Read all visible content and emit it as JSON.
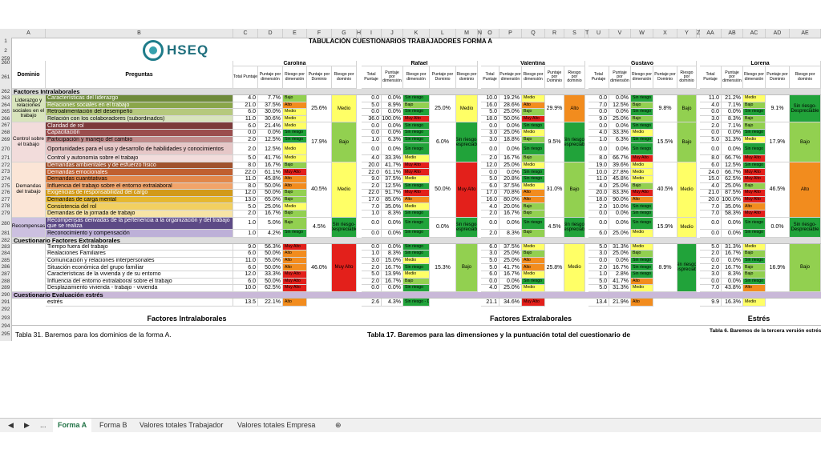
{
  "columns": [
    "A",
    "B",
    "C",
    "D",
    "E",
    "F",
    "G",
    "H",
    "I",
    "J",
    "K",
    "L",
    "M",
    "N",
    "O",
    "P",
    "Q",
    "R",
    "S",
    "T",
    "U",
    "V",
    "W",
    "X",
    "Y",
    "Z",
    "AA",
    "AB",
    "AC",
    "AD",
    "AE"
  ],
  "logo": "HSEQ",
  "title": "TABULACIÓN CUESTIONARIOS TRABAJADORES FORMA A",
  "row_numbers": [
    "1",
    "2",
    "259",
    "260",
    "261",
    "262",
    "263",
    "264",
    "265",
    "266",
    "267",
    "268",
    "269",
    "270",
    "271",
    "272",
    "273",
    "274",
    "275",
    "276",
    "277",
    "278",
    "279",
    "280",
    "281",
    "282",
    "283",
    "284",
    "285",
    "286",
    "287",
    "288",
    "289",
    "290",
    "291",
    "292",
    "293",
    "294",
    "295"
  ],
  "headers": {
    "dominio": "Dominio",
    "preguntas": "Preguntas",
    "total": "Total Puntaje",
    "pct_dim": "Puntaje por dimensión",
    "riesgo_dim": "Riesgo por dimensión",
    "pct_dom": "Puntaje por Dominio",
    "riesgo_dom": "Riesgo por dominio"
  },
  "workers": [
    "Carolina",
    "Rafael",
    "Valentina",
    "Gustavo",
    "Lorena"
  ],
  "sections": {
    "intra": "Factores Intralaborales",
    "extra": "Cuestionario Factores Extralaborales",
    "estres": "Cuestionario Evaluación estrés"
  },
  "domains": {
    "liderazgo": "Liderazgo y relaciones sociales en el trabajo",
    "control": "Control sobre el trabajo",
    "demandas": "Demandas del trabajo",
    "recompensas": "Recompensas"
  },
  "rows": [
    {
      "q": "Características del liderazgo",
      "c": "4.0",
      "cp": "7.7%",
      "cr": "Bajo",
      "r": "0.0",
      "rp": "0.0%",
      "rr": "Sin riesgo",
      "v": "10.0",
      "vp": "19.2%",
      "vr": "Medio",
      "g": "0.0",
      "gp": "0.0%",
      "gr": "Sin riesgo",
      "l": "11.0",
      "lp": "21.2%",
      "lr": "Medio"
    },
    {
      "q": "Relaciones sociales en el trabajo",
      "c": "21.0",
      "cp": "37.5%",
      "cr": "Alto",
      "r": "5.0",
      "rp": "8.9%",
      "rr": "Bajo",
      "v": "16.0",
      "vp": "28.6%",
      "vr": "Alto",
      "g": "7.0",
      "gp": "12.5%",
      "gr": "Bajo",
      "l": "4.0",
      "lp": "7.1%",
      "lr": "Bajo"
    },
    {
      "q": "Retroalimentación del desempeño",
      "c": "6.0",
      "cp": "30.0%",
      "cr": "Medio",
      "r": "0.0",
      "rp": "0.0%",
      "rr": "Sin riesgo",
      "v": "5.0",
      "vp": "25.0%",
      "vr": "Bajo",
      "g": "0.0",
      "gp": "0.0%",
      "gr": "Sin riesgo",
      "l": "0.0",
      "lp": "0.0%",
      "lr": "Sin riesgo"
    },
    {
      "q": "Relación con los colaboradores (subordinados)",
      "c": "11.0",
      "cp": "30.6%",
      "cr": "Medio",
      "r": "36.0",
      "rp": "100.0%",
      "rr": "Muy Alto",
      "v": "18.0",
      "vp": "50.0%",
      "vr": "Muy Alto",
      "g": "9.0",
      "gp": "25.0%",
      "gr": "Bajo",
      "l": "3.0",
      "lp": "8.3%",
      "lr": "Bajo"
    },
    {
      "q": "Claridad de rol",
      "c": "6.0",
      "cp": "21.4%",
      "cr": "Medio",
      "r": "0.0",
      "rp": "0.0%",
      "rr": "Sin riesgo",
      "v": "0.0",
      "vp": "0.0%",
      "vr": "Sin riesgo",
      "g": "0.0",
      "gp": "0.0%",
      "gr": "Sin riesgo",
      "l": "2.0",
      "lp": "7.1%",
      "lr": "Bajo"
    },
    {
      "q": "Capacitación",
      "c": "0.0",
      "cp": "0.0%",
      "cr": "Sin riesgo",
      "r": "0.0",
      "rp": "0.0%",
      "rr": "Sin riesgo",
      "v": "3.0",
      "vp": "25.0%",
      "vr": "Medio",
      "g": "4.0",
      "gp": "33.3%",
      "gr": "Medio",
      "l": "0.0",
      "lp": "0.0%",
      "lr": "Sin riesgo"
    },
    {
      "q": "Participación y manejo del cambio",
      "c": "2.0",
      "cp": "12.5%",
      "cr": "Sin riesgo",
      "r": "1.0",
      "rp": "6.3%",
      "rr": "Sin riesgo",
      "v": "3.0",
      "vp": "18.8%",
      "vr": "Bajo",
      "g": "1.0",
      "gp": "6.3%",
      "gr": "Sin riesgo",
      "l": "5.0",
      "lp": "31.3%",
      "lr": "Medio"
    },
    {
      "q": "Oportunidades para el uso y desarrollo de habilidades y conocimientos",
      "c": "2.0",
      "cp": "12.5%",
      "cr": "Medio",
      "r": "0.0",
      "rp": "0.0%",
      "rr": "Sin riesgo",
      "v": "0.0",
      "vp": "0.0%",
      "vr": "Sin riesgo",
      "g": "0.0",
      "gp": "0.0%",
      "gr": "Sin riesgo",
      "l": "0.0",
      "lp": "0.0%",
      "lr": "Sin riesgo"
    },
    {
      "q": "Control y autonomía sobre el trabajo",
      "c": "5.0",
      "cp": "41.7%",
      "cr": "Medio",
      "r": "4.0",
      "rp": "33.3%",
      "rr": "Medio",
      "v": "2.0",
      "vp": "16.7%",
      "vr": "Bajo",
      "g": "8.0",
      "gp": "66.7%",
      "gr": "Muy Alto",
      "l": "8.0",
      "lp": "66.7%",
      "lr": "Muy Alto"
    },
    {
      "q": "Demandas ambientales y de esfuerzo físico",
      "c": "8.0",
      "cp": "16.7%",
      "cr": "Bajo",
      "r": "20.0",
      "rp": "41.7%",
      "rr": "Muy Alto",
      "v": "12.0",
      "vp": "25.0%",
      "vr": "Medio",
      "g": "19.0",
      "gp": "39.6%",
      "gr": "Medio",
      "l": "6.0",
      "lp": "12.5%",
      "lr": "Sin riesgo"
    },
    {
      "q": "Demandas emocionales",
      "c": "22.0",
      "cp": "61.1%",
      "cr": "Muy Alto",
      "r": "22.0",
      "rp": "61.1%",
      "rr": "Muy Alto",
      "v": "0.0",
      "vp": "0.0%",
      "vr": "Sin riesgo",
      "g": "10.0",
      "gp": "27.8%",
      "gr": "Medio",
      "l": "24.0",
      "lp": "66.7%",
      "lr": "Muy Alto"
    },
    {
      "q": "Demandas cuantitativas",
      "c": "11.0",
      "cp": "45.8%",
      "cr": "Alto",
      "r": "9.0",
      "rp": "37.5%",
      "rr": "Medio",
      "v": "5.0",
      "vp": "20.8%",
      "vr": "Sin riesgo",
      "g": "11.0",
      "gp": "45.8%",
      "gr": "Medio",
      "l": "15.0",
      "lp": "62.5%",
      "lr": "Muy Alto"
    },
    {
      "q": "Influencia del trabajo sobre el entorno extralaboral",
      "c": "8.0",
      "cp": "50.0%",
      "cr": "Alto",
      "r": "2.0",
      "rp": "12.5%",
      "rr": "Sin riesgo",
      "v": "6.0",
      "vp": "37.5%",
      "vr": "Medio",
      "g": "4.0",
      "gp": "25.0%",
      "gr": "Bajo",
      "l": "4.0",
      "lp": "25.0%",
      "lr": "Bajo"
    },
    {
      "q": "Exigencias de responsabilidad del cargo",
      "c": "12.0",
      "cp": "50.0%",
      "cr": "Bajo",
      "r": "22.0",
      "rp": "91.7%",
      "rr": "Muy Alto",
      "v": "17.0",
      "vp": "70.8%",
      "vr": "Alto",
      "g": "20.0",
      "gp": "83.3%",
      "gr": "Muy Alto",
      "l": "21.0",
      "lp": "87.5%",
      "lr": "Muy Alto"
    },
    {
      "q": "Demandas de carga mental",
      "c": "13.0",
      "cp": "65.0%",
      "cr": "Bajo",
      "r": "17.0",
      "rp": "85.0%",
      "rr": "Alto",
      "v": "16.0",
      "vp": "80.0%",
      "vr": "Alto",
      "g": "18.0",
      "gp": "90.0%",
      "gr": "Alto",
      "l": "20.0",
      "lp": "100.0%",
      "lr": "Muy Alto"
    },
    {
      "q": "Consistencia del rol",
      "c": "5.0",
      "cp": "25.0%",
      "cr": "Medio",
      "r": "7.0",
      "rp": "35.0%",
      "rr": "Medio",
      "v": "4.0",
      "vp": "20.0%",
      "vr": "Bajo",
      "g": "2.0",
      "gp": "10.0%",
      "gr": "Sin riesgo",
      "l": "7.0",
      "lp": "35.0%",
      "lr": "Alto"
    },
    {
      "q": "Demandas de la jornada de trabajo",
      "c": "2.0",
      "cp": "16.7%",
      "cr": "Bajo",
      "r": "1.0",
      "rp": "8.3%",
      "rr": "Sin riesgo",
      "v": "2.0",
      "vp": "16.7%",
      "vr": "Bajo",
      "g": "0.0",
      "gp": "0.0%",
      "gr": "Sin riesgo",
      "l": "7.0",
      "lp": "58.3%",
      "lr": "Muy Alto"
    },
    {
      "q": "Recompensas derivadas de la pertenencia a la organización y del trabajo que se realiza",
      "c": "1.0",
      "cp": "5.0%",
      "cr": "Bajo",
      "r": "0.0",
      "rp": "0.0%",
      "rr": "Sin riesgo",
      "v": "0.0",
      "vp": "0.0%",
      "vr": "Sin riesgo",
      "g": "0.0",
      "gp": "0.0%",
      "gr": "Sin riesgo",
      "l": "0.0",
      "lp": "0.0%",
      "lr": "Sin riesgo"
    },
    {
      "q": "Reconocimiento y compensación",
      "c": "1.0",
      "cp": "4.2%",
      "cr": "Sin riesgo",
      "r": "0.0",
      "rp": "0.0%",
      "rr": "Sin riesgo",
      "v": "2.0",
      "vp": "8.3%",
      "vr": "Bajo",
      "g": "6.0",
      "gp": "25.0%",
      "gr": "Medio",
      "l": "0.0",
      "lp": "0.0%",
      "lr": "Sin riesgo"
    },
    {
      "q": "Tiempo fuera del trabajo",
      "c": "9.0",
      "cp": "56.3%",
      "cr": "Muy Alto",
      "r": "0.0",
      "rp": "0.0%",
      "rr": "Sin riesgo",
      "v": "6.0",
      "vp": "37.5%",
      "vr": "Medio",
      "g": "5.0",
      "gp": "31.3%",
      "gr": "Medio",
      "l": "5.0",
      "lp": "31.3%",
      "lr": "Medio"
    },
    {
      "q": "Realaciones Familiares",
      "c": "6.0",
      "cp": "50.0%",
      "cr": "Alto",
      "r": "1.0",
      "rp": "8.3%",
      "rr": "Sin riesgo",
      "v": "3.0",
      "vp": "25.0%",
      "vr": "Bajo",
      "g": "3.0",
      "gp": "25.0%",
      "gr": "Bajo",
      "l": "2.0",
      "lp": "16.7%",
      "lr": "Bajo"
    },
    {
      "q": "Comunicación y relaciones interpersonales",
      "c": "11.0",
      "cp": "55.0%",
      "cr": "Alto",
      "r": "3.0",
      "rp": "15.0%",
      "rr": "Medio",
      "v": "5.0",
      "vp": "25.0%",
      "vr": "Alto",
      "g": "0.0",
      "gp": "0.0%",
      "gr": "Sin riesgo",
      "l": "0.0",
      "lp": "0.0%",
      "lr": "Sin riesgo"
    },
    {
      "q": "Situación económica del grupo familiar",
      "c": "6.0",
      "cp": "50.0%",
      "cr": "Alto",
      "r": "2.0",
      "rp": "16.7%",
      "rr": "Sin riesgo",
      "v": "5.0",
      "vp": "41.7%",
      "vr": "Alto",
      "g": "2.0",
      "gp": "16.7%",
      "gr": "Sin riesgo",
      "l": "2.0",
      "lp": "16.7%",
      "lr": "Bajo"
    },
    {
      "q": "Características de la vivienda y de su entorno",
      "c": "12.0",
      "cp": "33.3%",
      "cr": "Muy Alto",
      "r": "5.0",
      "rp": "13.9%",
      "rr": "Medio",
      "v": "6.0",
      "vp": "16.7%",
      "vr": "Medio",
      "g": "1.0",
      "gp": "2.8%",
      "gr": "Sin riesgo",
      "l": "3.0",
      "lp": "8.3%",
      "lr": "Bajo"
    },
    {
      "q": "Influencia del entorno extralaboral sobre el trabajo",
      "c": "6.0",
      "cp": "50.0%",
      "cr": "Muy Alto",
      "r": "2.0",
      "rp": "16.7%",
      "rr": "Bajo",
      "v": "0.0",
      "vp": "0.0%",
      "vr": "Sin riesgo",
      "g": "5.0",
      "gp": "41.7%",
      "gr": "Alto",
      "l": "0.0",
      "lp": "0.0%",
      "lr": "Sin riesgo"
    },
    {
      "q": "Desplazamiento vivienda - trabajo - vivienda",
      "c": "10.0",
      "cp": "62.5%",
      "cr": "Muy Alto",
      "r": "0.0",
      "rp": "0.0%",
      "rr": "Sin riesgo",
      "v": "4.0",
      "vp": "25.0%",
      "vr": "Medio",
      "g": "5.0",
      "gp": "31.3%",
      "gr": "Medio",
      "l": "7.0",
      "lp": "43.8%",
      "lr": "Alto"
    },
    {
      "q": "estrés",
      "c": "13.5",
      "cp": "22.1%",
      "cr": "Alto",
      "r": "2.6",
      "rp": "4.3%",
      "rr": "Sin riesgo - Despreciable",
      "v": "21.1",
      "vp": "34.6%",
      "vr": "Muy Alto",
      "g": "13.4",
      "gp": "21.9%",
      "gr": "Alto",
      "l": "9.9",
      "lp": "16.3%",
      "lr": "Medio"
    }
  ],
  "domain_summary": {
    "carolina": [
      {
        "p": "25.6%",
        "r": "Medio"
      },
      {
        "p": "17.9%",
        "r": "Bajo"
      },
      {
        "p": "40.5%",
        "r": "Medio"
      },
      {
        "p": "4.5%",
        "r": "Sin riesgo- Despreciable"
      },
      {
        "p": "46.0%",
        "r": "Muy Alto"
      }
    ],
    "rafael": [
      {
        "p": "25.0%",
        "r": "Medio"
      },
      {
        "p": "6.0%",
        "r": "Sin riesgo- Despreciable"
      },
      {
        "p": "50.0%",
        "r": "Muy Alto"
      },
      {
        "p": "0.0%",
        "r": "Sin riesgo- Despreciable"
      },
      {
        "p": "15.3%",
        "r": "Bajo"
      }
    ],
    "valentina": [
      {
        "p": "29.9%",
        "r": "Alto"
      },
      {
        "p": "9.5%",
        "r": "Sin riesgo- Despreciable"
      },
      {
        "p": "31.0%",
        "r": "Bajo"
      },
      {
        "p": "4.5%",
        "r": "Sin riesgo- Despreciable"
      },
      {
        "p": "25.8%",
        "r": "Medio"
      }
    ],
    "gustavo": [
      {
        "p": "9.8%",
        "r": "Bajo"
      },
      {
        "p": "15.5%",
        "r": "Bajo"
      },
      {
        "p": "40.5%",
        "r": "Medio"
      },
      {
        "p": "15.9%",
        "r": "Medio"
      },
      {
        "p": "8.9%",
        "r": "Sin riesgo- Despreciable"
      }
    ],
    "lorena": [
      {
        "p": "9.1%",
        "r": "Sin riesgo- Despreciable"
      },
      {
        "p": "17.9%",
        "r": "Bajo"
      },
      {
        "p": "46.5%",
        "r": "Alto"
      },
      {
        "p": "0.0%",
        "r": "Sin riesgo- Despreciable"
      },
      {
        "p": "16.9%",
        "r": "Bajo"
      }
    ]
  },
  "footer": {
    "intra_title": "Factores Intralaborales",
    "extra_title": "Factores Extralaborales",
    "estres_title": "Estrés",
    "tabla31": "Tabla 31. Baremos para los dominios de la forma A.",
    "tabla17": "Tabla 17. Baremos para las dimensiones y la puntuación total del cuestionario de",
    "tabla6": "Tabla 6. Baremos de la tercera versión estrés\"."
  },
  "tabs": [
    "Forma A",
    "Forma B",
    "Valores totales Trabajador",
    "Valores totales Empresa"
  ],
  "tabnav": {
    "prev": "◀",
    "next": "▶",
    "more": "...",
    "add": "⊕"
  },
  "colors": {
    "sin_riesgo": "#21a33a",
    "bajo": "#92d050",
    "medio": "#ffff66",
    "alto": "#f28c1e",
    "muy_alto": "#e3201b"
  }
}
